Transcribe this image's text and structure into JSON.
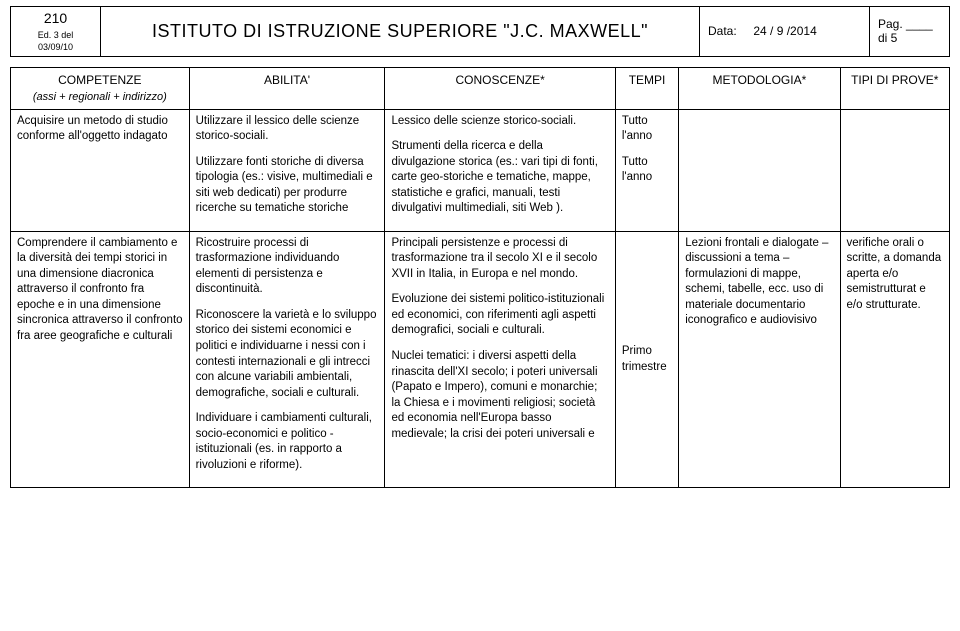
{
  "header": {
    "code": "210",
    "edition": "Ed. 3 del 03/09/10",
    "title": "ISTITUTO DI ISTRUZIONE SUPERIORE \"J.C. MAXWELL\"",
    "date_label": "Data:",
    "date_value": "24  / 9 /2014",
    "page_label": "Pag. ____ di 5"
  },
  "columns": {
    "competenze": "COMPETENZE",
    "competenze_sub": "(assi + regionali + indirizzo)",
    "abilita": "ABILITA'",
    "conoscenze": "CONOSCENZE*",
    "tempi": "TEMPI",
    "metodologia": "METODOLOGIA*",
    "tipi": "TIPI DI PROVE*"
  },
  "row1": {
    "competenze": "Acquisire un metodo di studio conforme all'oggetto indagato",
    "abilita_p1": "Utilizzare il lessico delle scienze storico-sociali.",
    "abilita_p2": "Utilizzare fonti storiche di diversa tipologia (es.: visive, multimediali e siti web dedicati) per produrre ricerche su tematiche storiche",
    "conoscenze_p1": "Lessico delle scienze storico-sociali.",
    "conoscenze_p2": "Strumenti della ricerca e della divulgazione storica (es.: vari tipi di fonti, carte geo-storiche e tematiche, mappe, statistiche e grafici, manuali, testi divulgativi multimediali, siti Web ).",
    "tempi_p1": "Tutto l'anno",
    "tempi_p2": "Tutto l'anno",
    "metodologia": "",
    "tipi": ""
  },
  "row2": {
    "competenze": "Comprendere il cambiamento e la diversità dei tempi storici in una dimensione diacronica attraverso il confronto fra epoche e in una dimensione sincronica attraverso il confronto fra aree geografiche e culturali",
    "abilita_p1": "Ricostruire processi di trasformazione individuando elementi di persistenza e discontinuità.",
    "abilita_p2": "Riconoscere la varietà e lo sviluppo storico dei sistemi economici e politici e individuarne i nessi con i contesti internazionali e gli intrecci con alcune variabili ambientali, demografiche, sociali e culturali.",
    "abilita_p3": "Individuare i cambiamenti culturali, socio-economici e politico - istituzionali (es. in rapporto a rivoluzioni e riforme).",
    "conoscenze_p1": "Principali persistenze e processi di trasformazione tra il secolo XI e il secolo XVII in Italia, in Europa e nel mondo.",
    "conoscenze_p2": "Evoluzione dei sistemi politico-istituzionali ed economici, con riferimenti agli aspetti demografici, sociali e culturali.",
    "conoscenze_p3": "Nuclei tematici: i diversi aspetti della rinascita dell'XI secolo; i poteri universali (Papato e Impero), comuni e monarchie; la Chiesa e i movimenti religiosi; società ed economia nell'Europa basso medievale; la crisi dei poteri universali e",
    "tempi": "Primo trimestre",
    "metodologia": "Lezioni frontali e dialogate – discussioni a tema – formulazioni di mappe, schemi, tabelle,  ecc.   uso di materiale documentario iconografico e audiovisivo",
    "tipi": "verifiche orali o scritte, a domanda aperta e/o semistrutturat e e/o strutturate."
  }
}
